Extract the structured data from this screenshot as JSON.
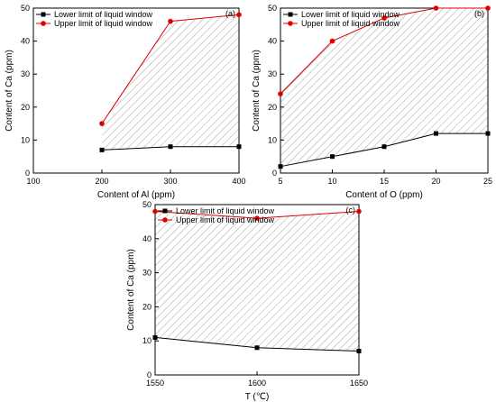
{
  "chart_data": [
    {
      "type": "line",
      "panel_label": "(a)",
      "xlabel": "Content of Al (ppm)",
      "ylabel": "Content of Ca (ppm)",
      "xlim": [
        100,
        400
      ],
      "ylim": [
        0,
        50
      ],
      "xticks": [
        100,
        200,
        300,
        400
      ],
      "yticks": [
        0,
        10,
        20,
        30,
        40,
        50
      ],
      "x": [
        200,
        300,
        400
      ],
      "series": [
        {
          "name": "Lower limit of liquid window",
          "values": [
            7,
            8,
            8
          ],
          "color": "#000000",
          "marker": "square"
        },
        {
          "name": "Upper limit of liquid window",
          "values": [
            15,
            46,
            48
          ],
          "color": "#e00000",
          "marker": "circle"
        }
      ],
      "legend": "top-left",
      "hatched_region": "between-series"
    },
    {
      "type": "line",
      "panel_label": "(b)",
      "xlabel": "Content of O (ppm)",
      "ylabel": "Content of Ca (ppm)",
      "xlim": [
        5,
        25
      ],
      "ylim": [
        0,
        50
      ],
      "xticks": [
        5,
        10,
        15,
        20,
        25
      ],
      "yticks": [
        0,
        10,
        20,
        30,
        40,
        50
      ],
      "x": [
        5,
        10,
        15,
        20,
        25
      ],
      "series": [
        {
          "name": "Lower limit of liquid window",
          "values": [
            2,
            5,
            8,
            12,
            12
          ],
          "color": "#000000",
          "marker": "square"
        },
        {
          "name": "Upper limit of liquid window",
          "values": [
            24,
            40,
            47,
            50,
            50
          ],
          "color": "#e00000",
          "marker": "circle"
        }
      ],
      "legend": "top-left",
      "hatched_region": "between-series"
    },
    {
      "type": "line",
      "panel_label": "(c)",
      "xlabel": "T (℃)",
      "ylabel": "Content of Ca (ppm)",
      "xlim": [
        1550,
        1650
      ],
      "ylim": [
        0,
        50
      ],
      "xticks": [
        1550,
        1600,
        1650
      ],
      "yticks": [
        0,
        10,
        20,
        30,
        40,
        50
      ],
      "x": [
        1550,
        1600,
        1650
      ],
      "series": [
        {
          "name": "Lower limit of liquid window",
          "values": [
            11,
            8,
            7
          ],
          "color": "#000000",
          "marker": "square"
        },
        {
          "name": "Upper limit of liquid window",
          "values": [
            48,
            46,
            48
          ],
          "color": "#e00000",
          "marker": "circle"
        }
      ],
      "legend": "top-left",
      "hatched_region": "between-series"
    }
  ]
}
